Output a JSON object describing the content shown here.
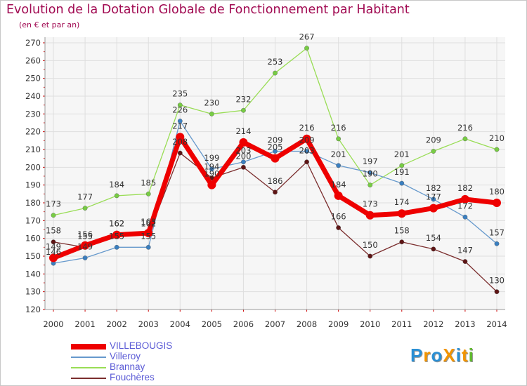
{
  "title": "Evolution de la Dotation Globale de Fonctionnement par Habitant",
  "subtitle": "(en € et par an)",
  "logo": {
    "text": "ProXiti",
    "colors": [
      "#2a8fd4",
      "#f29400",
      "#2a8fd4",
      "#f29400",
      "#2a8fd4",
      "#f29400",
      "#5fb82d"
    ]
  },
  "chart_data": {
    "type": "line",
    "x": [
      2000,
      2001,
      2002,
      2003,
      2004,
      2005,
      2006,
      2007,
      2008,
      2009,
      2010,
      2011,
      2012,
      2013,
      2014
    ],
    "ylim": [
      120,
      270
    ],
    "yticks": [
      120,
      130,
      140,
      150,
      160,
      170,
      180,
      190,
      200,
      210,
      220,
      230,
      240,
      250,
      260,
      270
    ],
    "grid": true,
    "legend_position": "bottom-left",
    "series": [
      {
        "name": "Brannay",
        "color": "#99dd55",
        "dot": "#77cc44",
        "width": 1.3,
        "values": [
          173,
          177,
          184,
          185,
          235,
          230,
          232,
          253,
          267,
          216,
          190,
          201,
          209,
          216,
          210
        ]
      },
      {
        "name": "Villeroy",
        "color": "#6699cc",
        "dot": "#3a7fc0",
        "width": 1.3,
        "values": [
          146,
          149,
          155,
          155,
          226,
          199,
          203,
          209,
          209,
          201,
          197,
          191,
          182,
          172,
          157
        ]
      },
      {
        "name": "Fouchères",
        "color": "#7b2e2e",
        "dot": "#5e1515",
        "width": 1.3,
        "values": [
          158,
          155,
          162,
          162,
          208,
          194,
          200,
          186,
          203,
          166,
          150,
          158,
          154,
          147,
          130
        ]
      },
      {
        "name": "VILLEBOUGIS",
        "color": "#ee0000",
        "dot": "#ee0000",
        "width": 7,
        "values": [
          149,
          156,
          162,
          163,
          217,
          190,
          214,
          205,
          216,
          184,
          173,
          174,
          177,
          182,
          180
        ]
      }
    ],
    "data_labels": {
      "Brannay": [
        "173",
        "177",
        "184",
        "185",
        "235",
        "230",
        "232",
        "253",
        "267",
        "216",
        "190",
        "201",
        "209",
        "216",
        "210"
      ],
      "Villeroy": [
        "146",
        "149",
        "155",
        "155",
        "226",
        "199",
        "203",
        "209",
        "209",
        "201",
        "197",
        "191",
        "182",
        "172",
        "157"
      ],
      "Fouchères": [
        "158",
        "155",
        "162",
        "162",
        "208",
        "194",
        "200",
        "186",
        "203",
        "166",
        "150",
        "158",
        "154",
        "147",
        "130"
      ],
      "VILLEBOUGIS": [
        "149",
        "156",
        "162",
        "163",
        "217",
        "190",
        "214",
        "205",
        "216",
        "184",
        "173",
        "174",
        "177",
        "182",
        "180"
      ]
    },
    "legend_order": [
      "VILLEBOUGIS",
      "Villeroy",
      "Brannay",
      "Fouchères"
    ]
  }
}
